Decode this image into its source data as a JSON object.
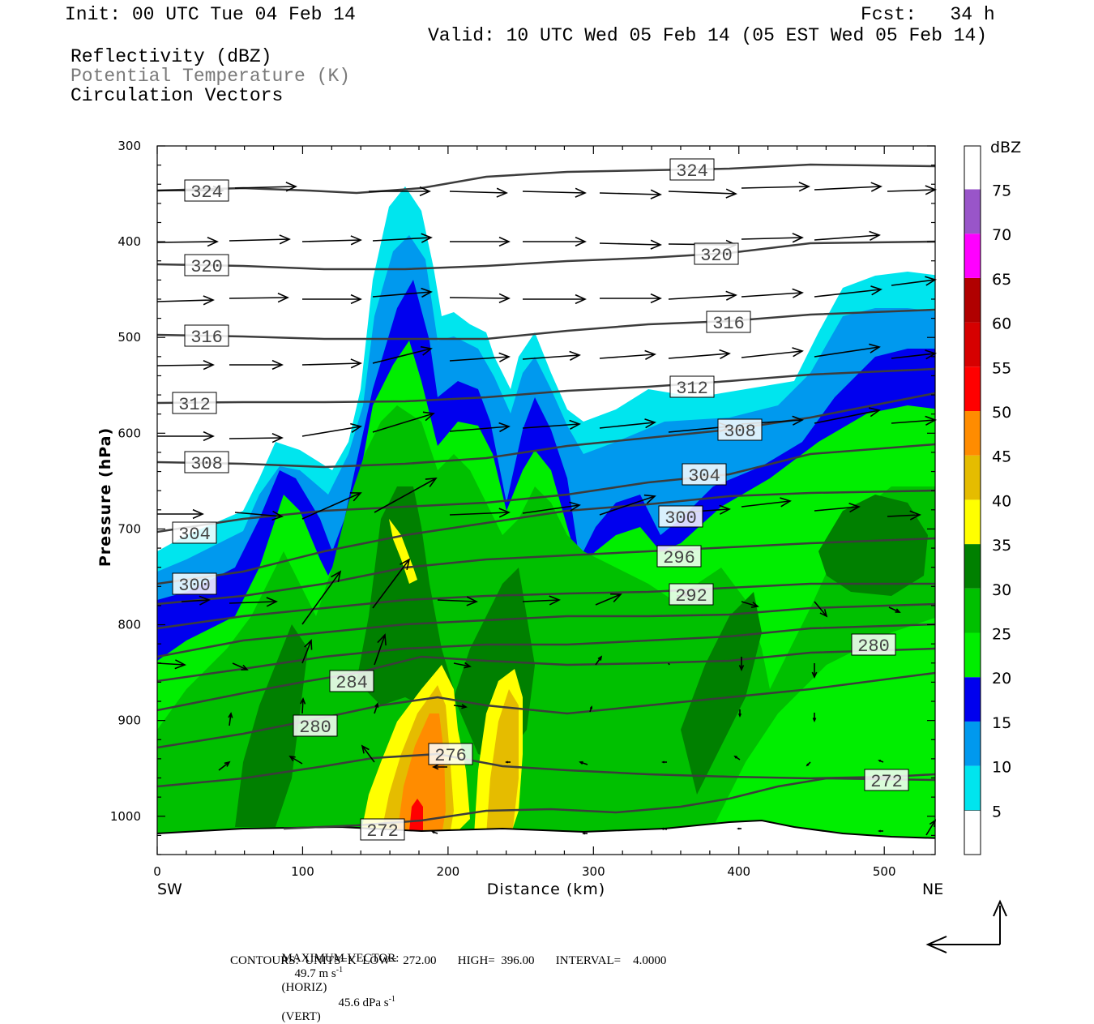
{
  "header": {
    "init": "Init: 00 UTC Tue 04 Feb 14",
    "fcst": "Fcst:   34 h",
    "valid": "Valid: 10 UTC Wed 05 Feb 14 (05 EST Wed 05 Feb 14)",
    "fields": [
      "Reflectivity (dBZ)",
      "Potential Temperature (K)",
      "Circulation Vectors"
    ]
  },
  "axes": {
    "ylabel": "Pressure (hPa)",
    "xlabel": "Distance (km)",
    "left_end": "SW",
    "right_end": "NE",
    "yticks": [
      "300",
      "400",
      "500",
      "600",
      "700",
      "800",
      "900",
      "1000"
    ],
    "xticks": [
      "0",
      "100",
      "200",
      "300",
      "400",
      "500"
    ]
  },
  "colorbar": {
    "unit": "dBZ",
    "levels": [
      "5",
      "10",
      "15",
      "20",
      "25",
      "30",
      "35",
      "40",
      "45",
      "50",
      "55",
      "60",
      "65",
      "70",
      "75"
    ],
    "colors": [
      "#00e5ee",
      "#0099ee",
      "#0000ee",
      "#00ee00",
      "#00c000",
      "#008000",
      "#ffff00",
      "#e5bc00",
      "#ff8c00",
      "#ff0000",
      "#d60000",
      "#b00000",
      "#ff00ff",
      "#9955c9",
      "#ffffff"
    ]
  },
  "footer": {
    "max_vector_label": "MAXIMUM VECTOR:",
    "horiz_value": "49.7 m s",
    "horiz_exp": "-1",
    "horiz_tag": "(HORIZ)",
    "vert_value": "45.6 dPa s",
    "vert_exp": "-1",
    "vert_tag": "(VERT)",
    "contours": "CONTOURS:  UNITS=K  LOW=  272.00       HIGH=  396.00       INTERVAL=    4.0000"
  },
  "chart_data": {
    "type": "heatmap",
    "xlim": [
      0,
      535
    ],
    "ylim": [
      1040,
      300
    ],
    "y_scale": "linear",
    "contour_labels": [
      "324",
      "324",
      "320",
      "320",
      "316",
      "316",
      "312",
      "312",
      "308",
      "308",
      "304",
      "304",
      "300",
      "300",
      "296",
      "292",
      "284",
      "280",
      "280",
      "276",
      "272",
      "272"
    ],
    "contour_unit": "K",
    "contour_interval": 4.0,
    "contour_low": 272.0,
    "contour_high": 396.0,
    "max_vector_horiz_m_s": 49.7,
    "max_vector_vert_dPa_s": 45.6,
    "grid": false,
    "legend_position": "right"
  }
}
